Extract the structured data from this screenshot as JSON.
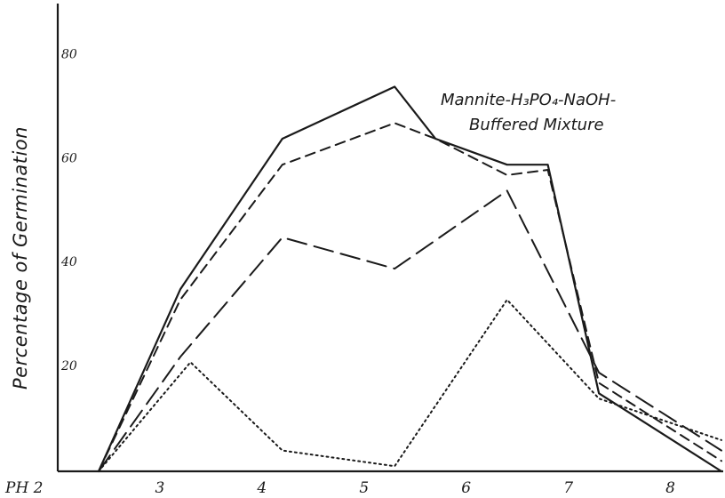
{
  "chart_data": {
    "type": "line",
    "xlabel": "PH 2",
    "ylabel": "Percentage of Germination",
    "xlim": [
      2,
      8.5
    ],
    "ylim": [
      0,
      90
    ],
    "xticks": [
      {
        "value": 3,
        "label": "3"
      },
      {
        "value": 4,
        "label": "4"
      },
      {
        "value": 5,
        "label": "5"
      },
      {
        "value": 6,
        "label": "6"
      },
      {
        "value": 7,
        "label": "7"
      },
      {
        "value": 8,
        "label": "8"
      }
    ],
    "yticks": [
      {
        "value": 20,
        "label": "20"
      },
      {
        "value": 40,
        "label": "40"
      },
      {
        "value": 60,
        "label": "60"
      },
      {
        "value": 80,
        "label": "80"
      }
    ],
    "annotation": {
      "line1": "Mannite-H₃PO₄-NaOH-",
      "line2": "Buffered Mixture"
    },
    "series": [
      {
        "style": "solid",
        "x": [
          2.4,
          3.2,
          4.2,
          5.3,
          5.7,
          6.4,
          6.8,
          7.3,
          8.5
        ],
        "y": [
          0,
          35,
          64,
          74,
          64,
          59,
          59,
          15,
          0
        ]
      },
      {
        "style": "short-dash",
        "x": [
          2.4,
          3.2,
          4.2,
          5.3,
          5.7,
          6.4,
          6.8,
          7.3,
          8.5
        ],
        "y": [
          0,
          33,
          59,
          67,
          64,
          57,
          58,
          17,
          2
        ]
      },
      {
        "style": "long-dash",
        "x": [
          2.4,
          3.2,
          4.2,
          5.3,
          6.4,
          7.3,
          8.5
        ],
        "y": [
          0,
          22,
          45,
          39,
          54,
          19,
          4
        ]
      },
      {
        "style": "dotted",
        "x": [
          2.4,
          3.3,
          4.2,
          5.3,
          6.4,
          7.3,
          8.5
        ],
        "y": [
          0,
          21,
          4,
          1,
          33,
          14,
          6
        ]
      }
    ]
  }
}
